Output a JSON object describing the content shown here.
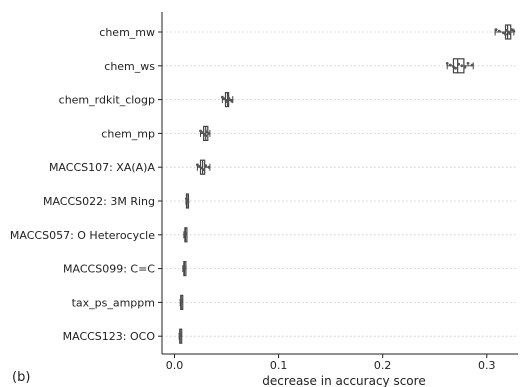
{
  "panel_label": "(b)",
  "chart_data": {
    "type": "box",
    "orientation": "horizontal",
    "title": "",
    "xlabel": "decrease in accuracy score",
    "ylabel": "",
    "xlim": [
      -0.012,
      0.33
    ],
    "xticks": [
      0.0,
      0.1,
      0.2,
      0.3
    ],
    "xtick_labels": [
      "0.0",
      "0.1",
      "0.2",
      "0.3"
    ],
    "grid": "horizontal dotted lines at each feature",
    "legend": "none",
    "colors": {
      "box_edge": "#444444",
      "grid": "#c8c8c8",
      "points": "#555555"
    },
    "categories": [
      "chem_mw",
      "chem_ws",
      "chem_rdkit_clogp",
      "chem_mp",
      "MACCS107: XA(A)A",
      "MACCS022: 3M Ring",
      "MACCS057: O Heterocycle",
      "MACCS099: C=C",
      "tax_ps_amppm",
      "MACCS123: OCO"
    ],
    "boxes": [
      {
        "min": 0.308,
        "q1": 0.318,
        "median": 0.32,
        "q3": 0.323,
        "max": 0.326,
        "points": [
          0.309,
          0.312,
          0.316,
          0.318,
          0.319,
          0.321,
          0.322,
          0.324,
          0.326
        ]
      },
      {
        "min": 0.262,
        "q1": 0.268,
        "median": 0.272,
        "q3": 0.278,
        "max": 0.287,
        "points": [
          0.262,
          0.265,
          0.268,
          0.27,
          0.273,
          0.276,
          0.279,
          0.282,
          0.286
        ]
      },
      {
        "min": 0.046,
        "q1": 0.049,
        "median": 0.051,
        "q3": 0.052,
        "max": 0.056,
        "points": [
          0.046,
          0.048,
          0.05,
          0.051,
          0.052,
          0.053,
          0.055
        ]
      },
      {
        "min": 0.025,
        "q1": 0.028,
        "median": 0.03,
        "q3": 0.032,
        "max": 0.034,
        "points": [
          0.025,
          0.027,
          0.029,
          0.03,
          0.031,
          0.033
        ]
      },
      {
        "min": 0.022,
        "q1": 0.025,
        "median": 0.027,
        "q3": 0.029,
        "max": 0.034,
        "points": [
          0.022,
          0.024,
          0.026,
          0.028,
          0.03,
          0.033
        ]
      },
      {
        "min": 0.011,
        "q1": 0.0115,
        "median": 0.012,
        "q3": 0.013,
        "max": 0.0135,
        "points": [
          0.0115,
          0.012,
          0.013
        ]
      },
      {
        "min": 0.009,
        "q1": 0.01,
        "median": 0.0105,
        "q3": 0.011,
        "max": 0.012,
        "points": [
          0.01,
          0.011
        ]
      },
      {
        "min": 0.008,
        "q1": 0.009,
        "median": 0.0095,
        "q3": 0.01,
        "max": 0.011,
        "points": [
          0.009,
          0.01
        ]
      },
      {
        "min": 0.0055,
        "q1": 0.006,
        "median": 0.0065,
        "q3": 0.007,
        "max": 0.0075,
        "points": [
          0.0062,
          0.0068
        ]
      },
      {
        "min": 0.0045,
        "q1": 0.005,
        "median": 0.0055,
        "q3": 0.006,
        "max": 0.0065,
        "points": [
          0.0052,
          0.0058
        ]
      }
    ]
  }
}
